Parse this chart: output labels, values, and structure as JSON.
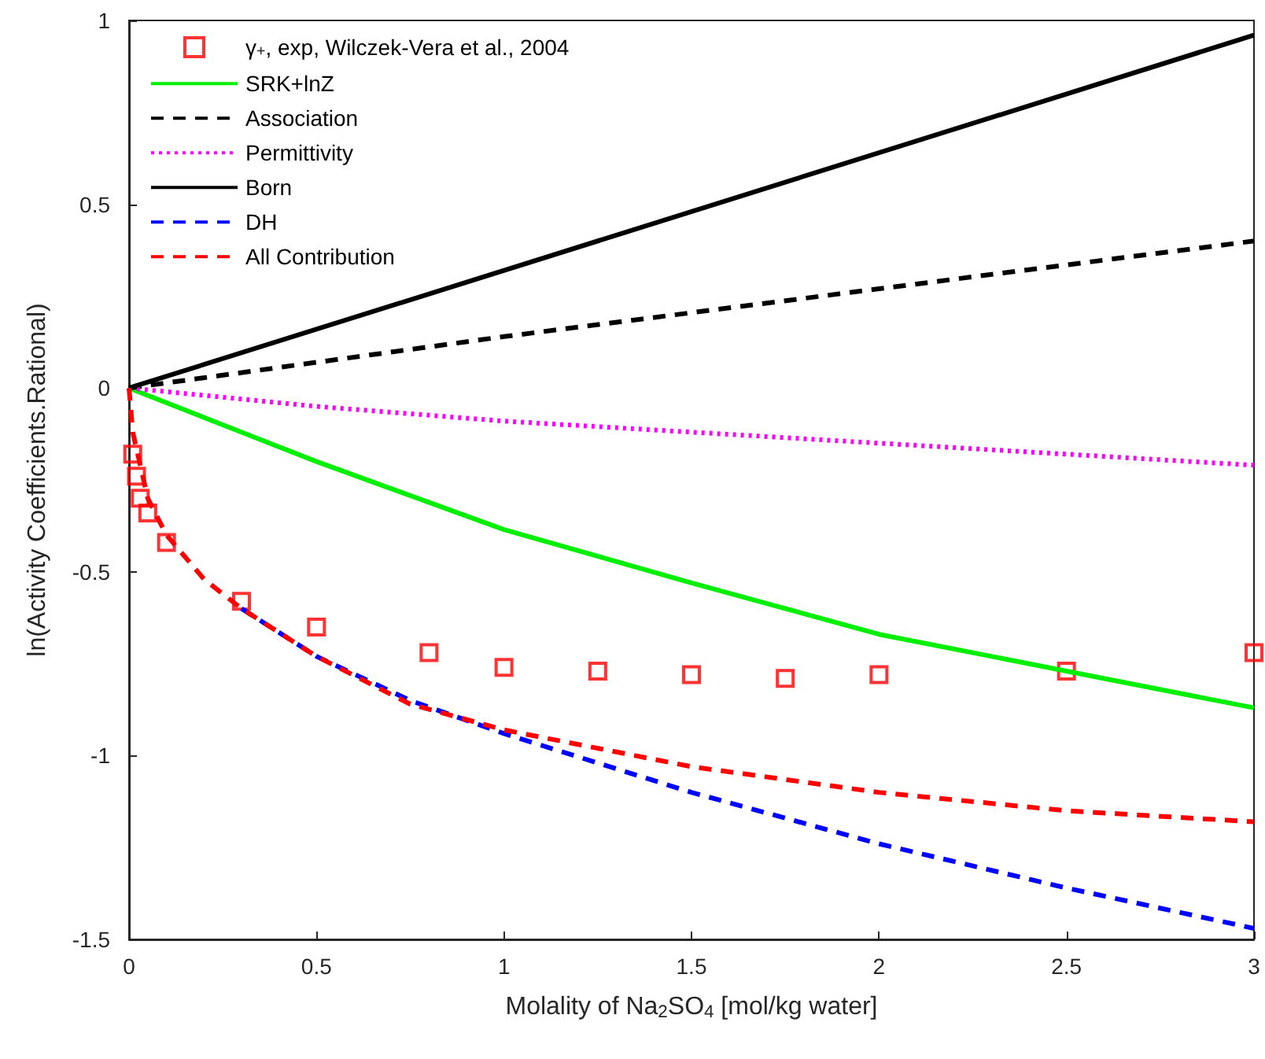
{
  "chart_data": {
    "type": "line",
    "xlabel": "Molality of Na$_{2}$SO$_{4}$ [mol/kg water]",
    "ylabel": "ln(Activity Coefficients.Rational)",
    "xlim": [
      0,
      3
    ],
    "xticks": [
      0,
      0.5,
      1,
      1.5,
      2,
      2.5,
      3
    ],
    "ylim": [
      -1.5,
      1
    ],
    "yticks": [
      -1.5,
      -1,
      -0.5,
      0,
      0.5,
      1
    ],
    "grid": false,
    "legend": "top left",
    "series": [
      {
        "name": "γ$_{+}$, exp, Wilczek-Vera et al., 2004",
        "type": "scatter",
        "marker": "square",
        "color": "#ff0000",
        "x": [
          0.01,
          0.02,
          0.03,
          0.05,
          0.1,
          0.3,
          0.5,
          0.8,
          1,
          1.25,
          1.5,
          1.75,
          2,
          2.5,
          3
        ],
        "values": [
          -0.18,
          -0.24,
          -0.3,
          -0.34,
          -0.42,
          -0.58,
          -0.65,
          -0.72,
          -0.76,
          -0.77,
          -0.78,
          -0.79,
          -0.78,
          -0.77,
          -0.72
        ]
      },
      {
        "name": "SRK+lnZ",
        "color": "#00ee00",
        "line_style": "solid",
        "marker": "none",
        "x": [
          0,
          0.25,
          0.5,
          1,
          1.5,
          2,
          2.5,
          3
        ],
        "values": [
          0,
          -0.1,
          -0.2,
          -0.385,
          -0.53,
          -0.67,
          -0.77,
          -0.87
        ]
      },
      {
        "name": "Association",
        "color": "#000000",
        "line_style": "dashed",
        "marker": "none",
        "x": [
          0,
          1,
          2,
          3
        ],
        "values": [
          0,
          0.14,
          0.27,
          0.4
        ]
      },
      {
        "name": "Permittivity",
        "color": "#ff00ff",
        "line_style": "dotted",
        "marker": "none",
        "x": [
          0,
          0.5,
          1,
          1.5,
          2,
          2.5,
          3
        ],
        "values": [
          0,
          -0.05,
          -0.09,
          -0.12,
          -0.15,
          -0.18,
          -0.21
        ]
      },
      {
        "name": "Born",
        "color": "#000000",
        "line_style": "solid",
        "marker": "none",
        "x": [
          0,
          3
        ],
        "values": [
          0,
          0.96
        ]
      },
      {
        "name": "DH",
        "color": "#0000ff",
        "line_style": "dashed",
        "marker": "none",
        "x": [
          0.3,
          0.5,
          0.75,
          1,
          1.5,
          2,
          2.5,
          3
        ],
        "values": [
          -0.6,
          -0.73,
          -0.85,
          -0.94,
          -1.1,
          -1.24,
          -1.36,
          -1.47
        ]
      },
      {
        "name": "All Contribution",
        "color": "#ff0000",
        "line_style": "dashed",
        "marker": "none",
        "x": [
          0,
          0.01,
          0.05,
          0.1,
          0.2,
          0.3,
          0.5,
          0.75,
          1,
          1.5,
          2,
          2.5,
          3
        ],
        "values": [
          0,
          -0.12,
          -0.3,
          -0.4,
          -0.52,
          -0.6,
          -0.73,
          -0.86,
          -0.93,
          -1.03,
          -1.1,
          -1.15,
          -1.18
        ]
      }
    ]
  }
}
